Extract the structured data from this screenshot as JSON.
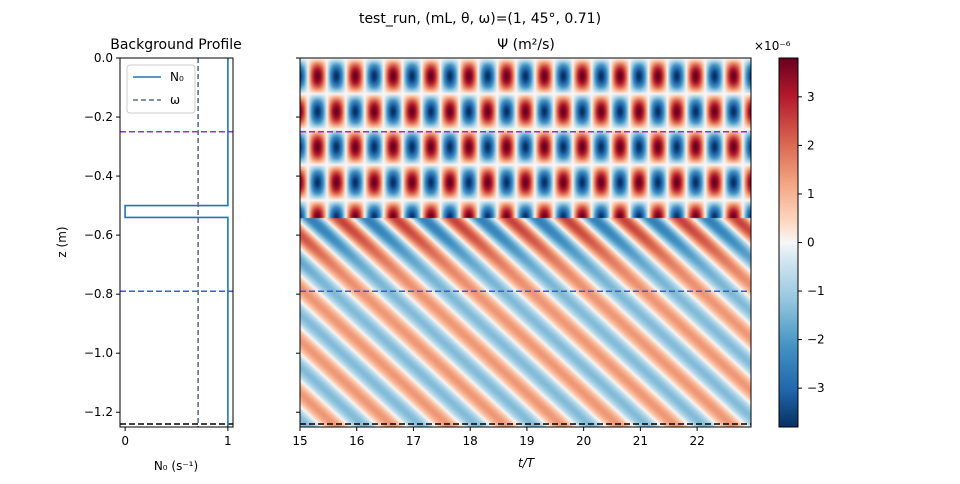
{
  "figure": {
    "suptitle": "test_run, (mL, θ, ω)=(1, 45°, 0.71)"
  },
  "chart_data": [
    {
      "type": "line",
      "title": "Background Profile",
      "xlabel": "N₀ (s⁻¹)",
      "ylabel": "z (m)",
      "xlim": [
        -0.05,
        1.05
      ],
      "ylim": [
        -1.25,
        0.0
      ],
      "xticks": [
        0,
        1
      ],
      "yticks": [
        0.0,
        -0.2,
        -0.4,
        -0.6,
        -0.8,
        -1.0,
        -1.2
      ],
      "ytick_labels": [
        "0.0",
        "−0.2",
        "−0.4",
        "−0.6",
        "−0.8",
        "−1.0",
        "−1.2"
      ],
      "legend_position": "top-left",
      "series": [
        {
          "name": "N₀",
          "style": "solid",
          "color": "#1f77b4",
          "x": [
            1.0,
            1.0,
            0.0,
            0.0,
            1.0,
            1.0
          ],
          "y": [
            0.0,
            -0.5,
            -0.5,
            -0.54,
            -0.54,
            -1.25
          ]
        },
        {
          "name": "ω",
          "style": "dashed",
          "color": "#5a6e8a",
          "x": [
            0.71,
            0.71
          ],
          "y": [
            0.0,
            -1.25
          ]
        }
      ],
      "hlines": [
        {
          "y": -0.25,
          "color": "#9b30c8"
        },
        {
          "y": -0.79,
          "color": "#3b5bdb"
        },
        {
          "y": -1.24,
          "color": "#000000"
        }
      ]
    },
    {
      "type": "heatmap",
      "title": "Ψ (m²/s)",
      "xlabel": "t/T",
      "xlim": [
        15,
        22.95
      ],
      "ylim": [
        -1.25,
        0.0
      ],
      "xticks": [
        15,
        16,
        17,
        18,
        19,
        20,
        21,
        22
      ],
      "colormap": "RdBu_r",
      "colorbar": {
        "exponent_label": "×10⁻⁶",
        "range": [
          -3.8,
          3.8
        ],
        "ticks": [
          3,
          2,
          1,
          0,
          -1,
          -2,
          -3
        ],
        "tick_labels": [
          "3",
          "2",
          "1",
          "0",
          "−1",
          "−2",
          "−3"
        ]
      },
      "regions": [
        {
          "z_top": 0.0,
          "z_bottom": -0.54,
          "pattern": "standing wave cells, amplitude ≈ 3.8e-6"
        },
        {
          "z_top": -0.54,
          "z_bottom": -1.25,
          "pattern": "diagonal propagating bands, amplitude ≈ 1.5e-6"
        }
      ],
      "hlines": [
        {
          "y": -0.25,
          "color": "#9b30c8"
        },
        {
          "y": -0.79,
          "color": "#3b5bdb"
        },
        {
          "y": -1.24,
          "color": "#000000"
        }
      ]
    }
  ]
}
